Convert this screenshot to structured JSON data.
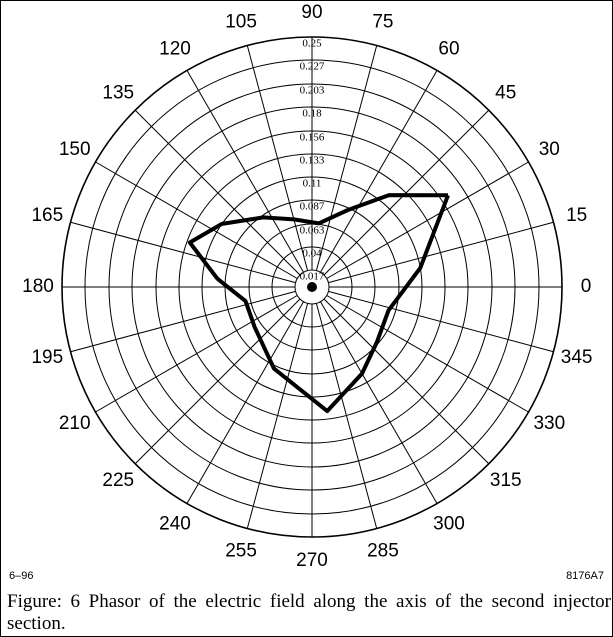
{
  "chart_data": {
    "type": "polar",
    "theta_ticks": [
      0,
      15,
      30,
      45,
      60,
      75,
      90,
      105,
      120,
      135,
      150,
      165,
      180,
      195,
      210,
      225,
      240,
      255,
      270,
      285,
      300,
      315,
      330,
      345
    ],
    "rlim": [
      0,
      0.25
    ],
    "rticks": [
      0.25,
      0.227,
      0.203,
      0.18,
      0.156,
      0.133,
      0.11,
      0.087,
      0.063,
      0.04,
      0.017
    ],
    "grid": true,
    "series": [
      {
        "color": "#000000",
        "theta": [
          34,
          50,
          65,
          84,
          105,
          125,
          145,
          160,
          175,
          192,
          215,
          245,
          277,
          300,
          320,
          343,
          10,
          34
        ],
        "r": [
          0.164,
          0.12,
          0.085,
          0.064,
          0.07,
          0.085,
          0.11,
          0.13,
          0.095,
          0.068,
          0.07,
          0.09,
          0.125,
          0.1,
          0.085,
          0.08,
          0.11,
          0.164
        ]
      }
    ],
    "annotations": [
      "6–96",
      "8176A7"
    ],
    "caption": "Figure: 6 Phasor of the electric field along the axis of the second injector section."
  }
}
